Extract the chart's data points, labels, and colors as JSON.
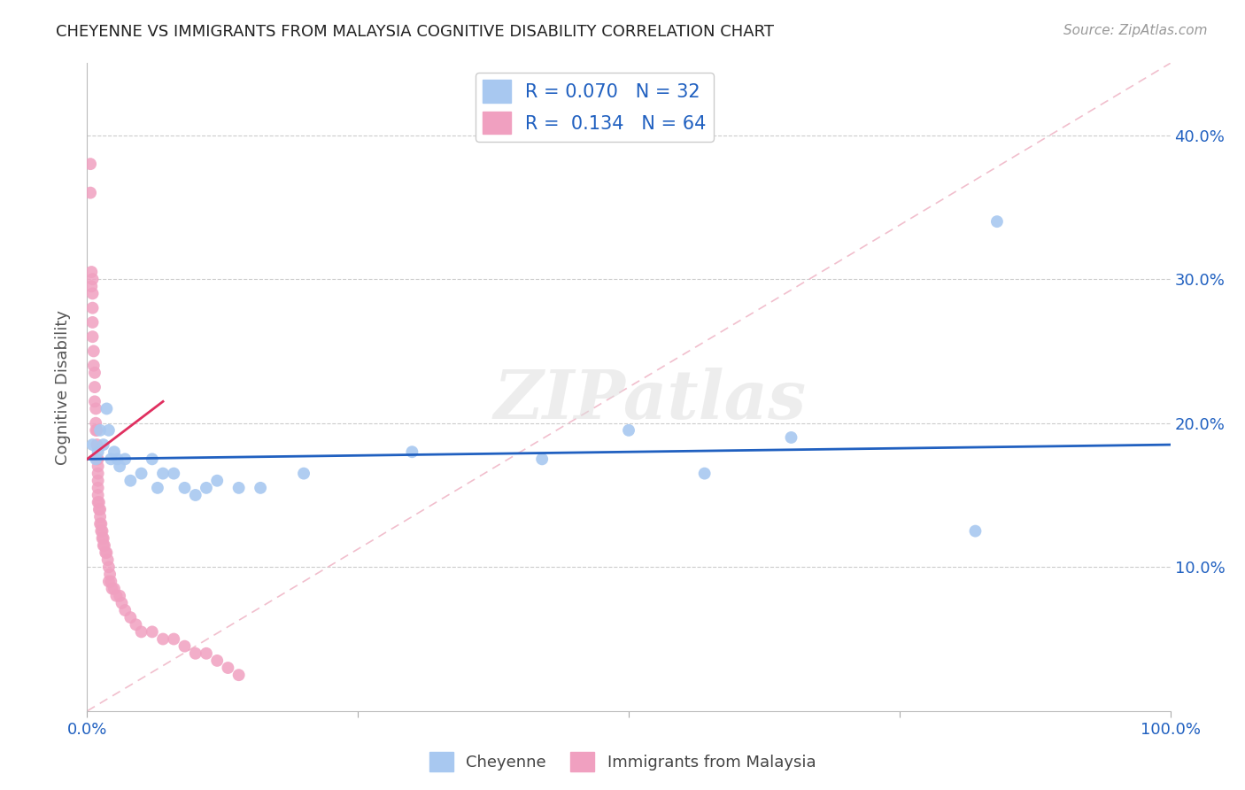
{
  "title": "CHEYENNE VS IMMIGRANTS FROM MALAYSIA COGNITIVE DISABILITY CORRELATION CHART",
  "source": "Source: ZipAtlas.com",
  "ylabel": "Cognitive Disability",
  "xlim": [
    0.0,
    1.0
  ],
  "ylim": [
    0.0,
    0.45
  ],
  "xticks": [
    0.0,
    0.25,
    0.5,
    0.75,
    1.0
  ],
  "xtick_labels": [
    "0.0%",
    "",
    "",
    "",
    "100.0%"
  ],
  "ytick_labels": [
    "10.0%",
    "20.0%",
    "30.0%",
    "40.0%"
  ],
  "yticks": [
    0.1,
    0.2,
    0.3,
    0.4
  ],
  "blue_R": 0.07,
  "blue_N": 32,
  "pink_R": 0.134,
  "pink_N": 64,
  "blue_color": "#A8C8F0",
  "pink_color": "#F0A0C0",
  "blue_line_color": "#2060C0",
  "pink_line_color": "#E03060",
  "diagonal_color": "#F0B8C8",
  "background_color": "#FFFFFF",
  "grid_color": "#CCCCCC",
  "title_color": "#222222",
  "axis_label_color": "#2060C0",
  "watermark": "ZIPatlas",
  "blue_points_x": [
    0.005,
    0.008,
    0.01,
    0.012,
    0.015,
    0.018,
    0.02,
    0.022,
    0.025,
    0.028,
    0.03,
    0.035,
    0.04,
    0.05,
    0.06,
    0.065,
    0.07,
    0.08,
    0.09,
    0.1,
    0.11,
    0.12,
    0.14,
    0.16,
    0.2,
    0.3,
    0.42,
    0.5,
    0.57,
    0.65,
    0.82,
    0.84
  ],
  "blue_points_y": [
    0.185,
    0.175,
    0.18,
    0.195,
    0.185,
    0.21,
    0.195,
    0.175,
    0.18,
    0.175,
    0.17,
    0.175,
    0.16,
    0.165,
    0.175,
    0.155,
    0.165,
    0.165,
    0.155,
    0.15,
    0.155,
    0.16,
    0.155,
    0.155,
    0.165,
    0.18,
    0.175,
    0.195,
    0.165,
    0.19,
    0.125,
    0.34
  ],
  "pink_points_x": [
    0.003,
    0.003,
    0.004,
    0.004,
    0.005,
    0.005,
    0.005,
    0.005,
    0.005,
    0.006,
    0.006,
    0.007,
    0.007,
    0.007,
    0.008,
    0.008,
    0.008,
    0.009,
    0.009,
    0.009,
    0.01,
    0.01,
    0.01,
    0.01,
    0.01,
    0.01,
    0.01,
    0.011,
    0.011,
    0.012,
    0.012,
    0.012,
    0.013,
    0.013,
    0.014,
    0.014,
    0.015,
    0.015,
    0.016,
    0.017,
    0.018,
    0.019,
    0.02,
    0.021,
    0.022,
    0.023,
    0.025,
    0.027,
    0.03,
    0.032,
    0.035,
    0.04,
    0.045,
    0.05,
    0.06,
    0.07,
    0.08,
    0.09,
    0.1,
    0.11,
    0.12,
    0.13,
    0.14,
    0.02
  ],
  "pink_points_y": [
    0.38,
    0.36,
    0.305,
    0.295,
    0.3,
    0.29,
    0.28,
    0.27,
    0.26,
    0.25,
    0.24,
    0.235,
    0.225,
    0.215,
    0.21,
    0.2,
    0.195,
    0.195,
    0.185,
    0.175,
    0.175,
    0.17,
    0.165,
    0.16,
    0.155,
    0.15,
    0.145,
    0.145,
    0.14,
    0.14,
    0.135,
    0.13,
    0.13,
    0.125,
    0.125,
    0.12,
    0.12,
    0.115,
    0.115,
    0.11,
    0.11,
    0.105,
    0.1,
    0.095,
    0.09,
    0.085,
    0.085,
    0.08,
    0.08,
    0.075,
    0.07,
    0.065,
    0.06,
    0.055,
    0.055,
    0.05,
    0.05,
    0.045,
    0.04,
    0.04,
    0.035,
    0.03,
    0.025,
    0.09
  ]
}
